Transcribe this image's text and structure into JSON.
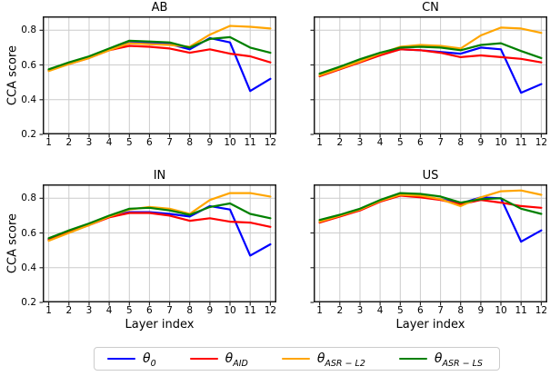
{
  "figure": {
    "ylabel": "CCA score",
    "xlabel": "Layer index"
  },
  "legend": {
    "border_color": "#cccccc",
    "items": [
      {
        "base": "θ",
        "sub": "0",
        "color": "#0000ff"
      },
      {
        "base": "θ",
        "sub": "AID",
        "color": "#ff0000"
      },
      {
        "base": "θ",
        "sub": "ASR − L2",
        "color": "#ffa500"
      },
      {
        "base": "θ",
        "sub": "ASR − LS",
        "color": "#008000"
      }
    ]
  },
  "chart_data": [
    {
      "type": "line",
      "title": "AB",
      "xlabel": "",
      "ylabel": "CCA score",
      "x": [
        1,
        2,
        3,
        4,
        5,
        6,
        7,
        8,
        9,
        10,
        11,
        12
      ],
      "xticks": [
        1,
        2,
        3,
        4,
        5,
        6,
        7,
        8,
        9,
        10,
        11,
        12
      ],
      "yticks": [
        0.2,
        0.4,
        0.6,
        0.8
      ],
      "xlim": [
        0.7,
        12.3
      ],
      "ylim": [
        0.2,
        0.88
      ],
      "grid": true,
      "legend_position": "figure-bottom",
      "series": [
        {
          "name": "θ0",
          "color": "#0000ff",
          "values": [
            0.57,
            0.61,
            0.645,
            0.69,
            0.73,
            0.725,
            0.72,
            0.69,
            0.755,
            0.73,
            0.45,
            0.52
          ]
        },
        {
          "name": "θAID",
          "color": "#ff0000",
          "values": [
            0.57,
            0.605,
            0.64,
            0.685,
            0.71,
            0.705,
            0.695,
            0.67,
            0.69,
            0.665,
            0.65,
            0.615
          ]
        },
        {
          "name": "θASR−L2",
          "color": "#ffa500",
          "values": [
            0.565,
            0.605,
            0.64,
            0.685,
            0.725,
            0.72,
            0.715,
            0.705,
            0.775,
            0.825,
            0.82,
            0.81
          ]
        },
        {
          "name": "θASR−LS",
          "color": "#008000",
          "values": [
            0.575,
            0.615,
            0.65,
            0.695,
            0.74,
            0.735,
            0.73,
            0.7,
            0.75,
            0.76,
            0.7,
            0.67
          ]
        }
      ]
    },
    {
      "type": "line",
      "title": "CN",
      "xlabel": "",
      "ylabel": "",
      "x": [
        1,
        2,
        3,
        4,
        5,
        6,
        7,
        8,
        9,
        10,
        11,
        12
      ],
      "xticks": [
        1,
        2,
        3,
        4,
        5,
        6,
        7,
        8,
        9,
        10,
        11,
        12
      ],
      "yticks": [
        0.2,
        0.4,
        0.6,
        0.8
      ],
      "xlim": [
        0.7,
        12.3
      ],
      "ylim": [
        0.2,
        0.88
      ],
      "grid": true,
      "legend_position": "figure-bottom",
      "series": [
        {
          "name": "θ0",
          "color": "#0000ff",
          "values": [
            0.54,
            0.58,
            0.62,
            0.66,
            0.69,
            0.685,
            0.675,
            0.665,
            0.7,
            0.69,
            0.44,
            0.49
          ]
        },
        {
          "name": "θAID",
          "color": "#ff0000",
          "values": [
            0.535,
            0.575,
            0.615,
            0.655,
            0.69,
            0.685,
            0.67,
            0.645,
            0.655,
            0.645,
            0.635,
            0.615
          ]
        },
        {
          "name": "θASR−L2",
          "color": "#ffa500",
          "values": [
            0.54,
            0.58,
            0.62,
            0.665,
            0.705,
            0.715,
            0.71,
            0.695,
            0.77,
            0.815,
            0.81,
            0.785
          ]
        },
        {
          "name": "θASR−LS",
          "color": "#008000",
          "values": [
            0.55,
            0.59,
            0.633,
            0.67,
            0.7,
            0.705,
            0.7,
            0.685,
            0.715,
            0.725,
            0.68,
            0.64
          ]
        }
      ]
    },
    {
      "type": "line",
      "title": "IN",
      "xlabel": "Layer index",
      "ylabel": "CCA score",
      "x": [
        1,
        2,
        3,
        4,
        5,
        6,
        7,
        8,
        9,
        10,
        11,
        12
      ],
      "xticks": [
        1,
        2,
        3,
        4,
        5,
        6,
        7,
        8,
        9,
        10,
        11,
        12
      ],
      "yticks": [
        0.2,
        0.4,
        0.6,
        0.8
      ],
      "xlim": [
        0.7,
        12.3
      ],
      "ylim": [
        0.2,
        0.88
      ],
      "grid": true,
      "legend_position": "figure-bottom",
      "series": [
        {
          "name": "θ0",
          "color": "#0000ff",
          "values": [
            0.565,
            0.61,
            0.65,
            0.695,
            0.72,
            0.72,
            0.71,
            0.695,
            0.755,
            0.735,
            0.47,
            0.535
          ]
        },
        {
          "name": "θAID",
          "color": "#ff0000",
          "values": [
            0.56,
            0.605,
            0.645,
            0.69,
            0.715,
            0.715,
            0.7,
            0.67,
            0.685,
            0.665,
            0.66,
            0.635
          ]
        },
        {
          "name": "θASR−L2",
          "color": "#ffa500",
          "values": [
            0.555,
            0.6,
            0.645,
            0.695,
            0.735,
            0.75,
            0.74,
            0.71,
            0.79,
            0.83,
            0.83,
            0.81
          ]
        },
        {
          "name": "θASR−LS",
          "color": "#008000",
          "values": [
            0.57,
            0.615,
            0.655,
            0.7,
            0.74,
            0.745,
            0.73,
            0.705,
            0.75,
            0.77,
            0.71,
            0.685
          ]
        }
      ]
    },
    {
      "type": "line",
      "title": "US",
      "xlabel": "Layer index",
      "ylabel": "",
      "x": [
        1,
        2,
        3,
        4,
        5,
        6,
        7,
        8,
        9,
        10,
        11,
        12
      ],
      "xticks": [
        1,
        2,
        3,
        4,
        5,
        6,
        7,
        8,
        9,
        10,
        11,
        12
      ],
      "yticks": [
        0.2,
        0.4,
        0.6,
        0.8
      ],
      "xlim": [
        0.7,
        12.3
      ],
      "ylim": [
        0.2,
        0.88
      ],
      "grid": true,
      "legend_position": "figure-bottom",
      "series": [
        {
          "name": "θ0",
          "color": "#0000ff",
          "values": [
            0.665,
            0.7,
            0.735,
            0.785,
            0.82,
            0.81,
            0.795,
            0.77,
            0.805,
            0.8,
            0.55,
            0.615
          ]
        },
        {
          "name": "θAID",
          "color": "#ff0000",
          "values": [
            0.66,
            0.695,
            0.73,
            0.78,
            0.815,
            0.805,
            0.79,
            0.765,
            0.79,
            0.775,
            0.755,
            0.745
          ]
        },
        {
          "name": "θASR−L2",
          "color": "#ffa500",
          "values": [
            0.665,
            0.7,
            0.735,
            0.785,
            0.82,
            0.815,
            0.795,
            0.755,
            0.805,
            0.84,
            0.845,
            0.82
          ]
        },
        {
          "name": "θASR−LS",
          "color": "#008000",
          "values": [
            0.675,
            0.705,
            0.74,
            0.79,
            0.83,
            0.825,
            0.81,
            0.775,
            0.795,
            0.8,
            0.74,
            0.71
          ]
        }
      ]
    }
  ]
}
